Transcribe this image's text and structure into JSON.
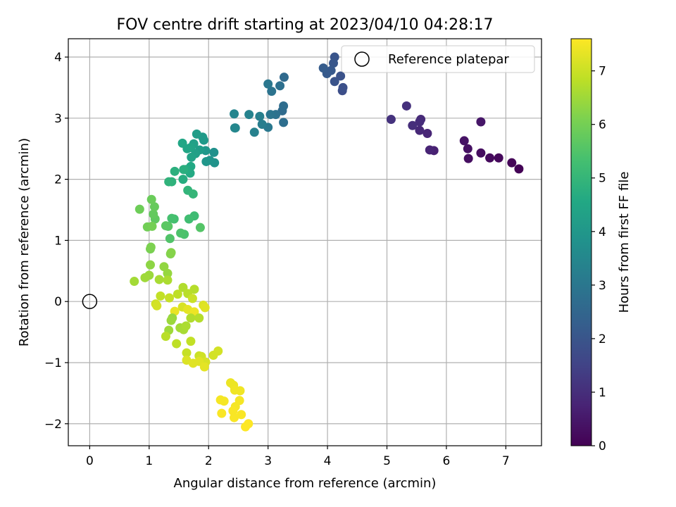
{
  "chart_data": {
    "type": "scatter",
    "title": "FOV centre drift starting at 2023/04/10 04:28:17",
    "xlabel": "Angular distance from reference (arcmin)",
    "ylabel": "Rotation from reference (arcmin)",
    "xlim": [
      -0.36,
      7.6
    ],
    "ylim": [
      -2.36,
      4.3
    ],
    "xticks": [
      0,
      1,
      2,
      3,
      4,
      5,
      6,
      7
    ],
    "yticks": [
      -2,
      -1,
      0,
      1,
      2,
      3,
      4
    ],
    "grid": true,
    "legend": {
      "placement": "top-right",
      "entries": [
        "Reference platepar"
      ]
    },
    "reference": {
      "x": 0,
      "y": 0,
      "label": "Reference platepar"
    },
    "colorbar": {
      "label": "Hours from first FF file",
      "min": 0,
      "max": 7.6,
      "ticks": [
        0,
        1,
        2,
        3,
        4,
        5,
        6,
        7
      ],
      "colormap": "viridis"
    },
    "series": [
      {
        "values": [
          [
            7.22,
            2.17,
            0.05
          ],
          [
            7.1,
            2.27,
            0.1
          ],
          [
            6.88,
            2.35,
            0.15
          ],
          [
            6.73,
            2.35,
            0.2
          ],
          [
            6.58,
            2.43,
            0.25
          ],
          [
            6.37,
            2.34,
            0.3
          ],
          [
            6.36,
            2.5,
            0.35
          ],
          [
            6.3,
            2.63,
            0.4
          ],
          [
            6.58,
            2.94,
            0.45
          ],
          [
            5.79,
            2.47,
            0.7
          ],
          [
            5.72,
            2.48,
            0.75
          ],
          [
            5.68,
            2.75,
            0.8
          ],
          [
            5.55,
            2.8,
            0.85
          ],
          [
            5.57,
            2.98,
            0.9
          ],
          [
            5.55,
            2.94,
            0.95
          ],
          [
            5.43,
            2.88,
            1.0
          ],
          [
            5.33,
            3.2,
            1.05
          ],
          [
            5.07,
            2.98,
            1.1
          ],
          [
            4.25,
            3.45,
            1.8
          ],
          [
            4.26,
            3.5,
            1.85
          ],
          [
            4.22,
            3.69,
            1.9
          ],
          [
            4.12,
            3.6,
            1.95
          ],
          [
            4.12,
            4.0,
            2.0
          ],
          [
            4.1,
            3.9,
            2.05
          ],
          [
            4.06,
            3.78,
            2.1
          ],
          [
            3.99,
            3.73,
            2.15
          ],
          [
            3.93,
            3.82,
            2.2
          ],
          [
            3.27,
            3.67,
            2.6
          ],
          [
            3.24,
            3.12,
            2.65
          ],
          [
            3.26,
            3.2,
            2.7
          ],
          [
            3.26,
            2.93,
            2.75
          ],
          [
            3.2,
            3.53,
            2.8
          ],
          [
            3.13,
            3.06,
            2.85
          ],
          [
            3.06,
            3.44,
            2.9
          ],
          [
            3.04,
            3.06,
            2.95
          ],
          [
            3.0,
            3.56,
            3.0
          ],
          [
            3.0,
            2.85,
            3.05
          ],
          [
            2.9,
            2.9,
            3.2
          ],
          [
            2.86,
            3.03,
            3.25
          ],
          [
            2.77,
            2.77,
            3.3
          ],
          [
            2.68,
            3.06,
            3.35
          ],
          [
            2.45,
            2.84,
            3.4
          ],
          [
            2.43,
            3.07,
            3.45
          ],
          [
            2.44,
            2.84,
            3.5
          ],
          [
            2.09,
            2.44,
            3.8
          ],
          [
            2.1,
            2.27,
            3.85
          ],
          [
            2.02,
            2.31,
            3.9
          ],
          [
            1.96,
            2.29,
            3.95
          ],
          [
            1.95,
            2.47,
            4.0
          ],
          [
            1.92,
            2.64,
            4.05
          ],
          [
            1.9,
            2.69,
            4.1
          ],
          [
            1.85,
            2.48,
            4.15
          ],
          [
            1.8,
            2.74,
            4.2
          ],
          [
            1.78,
            2.42,
            4.25
          ],
          [
            1.75,
            2.58,
            4.3
          ],
          [
            1.71,
            2.36,
            4.35
          ],
          [
            1.7,
            2.52,
            4.4
          ],
          [
            1.64,
            2.5,
            4.45
          ],
          [
            1.56,
            2.59,
            4.5
          ],
          [
            1.7,
            2.21,
            4.55
          ],
          [
            1.69,
            2.1,
            4.6
          ],
          [
            1.62,
            2.16,
            4.65
          ],
          [
            1.57,
            2.0,
            4.7
          ],
          [
            1.58,
            2.16,
            4.75
          ],
          [
            1.43,
            2.13,
            4.8
          ],
          [
            1.38,
            1.96,
            4.85
          ],
          [
            1.33,
            1.96,
            4.9
          ],
          [
            1.65,
            1.82,
            4.95
          ],
          [
            1.74,
            1.76,
            5.0
          ],
          [
            1.76,
            1.4,
            5.2
          ],
          [
            1.67,
            1.35,
            5.25
          ],
          [
            1.42,
            1.35,
            5.3
          ],
          [
            1.38,
            1.36,
            5.35
          ],
          [
            1.59,
            1.1,
            5.4
          ],
          [
            1.53,
            1.12,
            5.45
          ],
          [
            1.35,
            1.03,
            5.5
          ],
          [
            1.86,
            1.21,
            5.55
          ],
          [
            1.32,
            1.23,
            5.6
          ],
          [
            1.28,
            1.24,
            5.65
          ],
          [
            1.1,
            1.35,
            5.7
          ],
          [
            1.07,
            1.43,
            5.75
          ],
          [
            1.09,
            1.55,
            5.8
          ],
          [
            1.04,
            1.67,
            5.85
          ],
          [
            0.84,
            1.51,
            5.9
          ],
          [
            0.97,
            1.22,
            5.95
          ],
          [
            1.05,
            1.23,
            6.0
          ],
          [
            1.02,
            0.86,
            6.05
          ],
          [
            1.03,
            0.89,
            6.1
          ],
          [
            1.36,
            0.78,
            6.15
          ],
          [
            1.37,
            0.8,
            6.2
          ],
          [
            1.02,
            0.6,
            6.3
          ],
          [
            1.25,
            0.57,
            6.35
          ],
          [
            1.31,
            0.46,
            6.4
          ],
          [
            1.0,
            0.43,
            6.45
          ],
          [
            0.93,
            0.39,
            6.5
          ],
          [
            0.75,
            0.33,
            6.55
          ],
          [
            1.17,
            0.36,
            6.6
          ],
          [
            1.31,
            0.35,
            6.65
          ],
          [
            1.57,
            0.23,
            6.7
          ],
          [
            1.76,
            0.2,
            6.75
          ],
          [
            1.65,
            0.13,
            6.8
          ],
          [
            1.48,
            0.12,
            6.85
          ],
          [
            1.19,
            0.09,
            6.9
          ],
          [
            1.34,
            0.06,
            6.95
          ],
          [
            1.73,
            0.05,
            7.0
          ],
          [
            1.11,
            -0.04,
            7.05
          ],
          [
            1.13,
            -0.07,
            7.1
          ],
          [
            1.56,
            -0.09,
            7.15
          ],
          [
            1.91,
            -0.06,
            7.2
          ],
          [
            1.94,
            -0.1,
            7.25
          ],
          [
            1.65,
            -0.13,
            7.3
          ],
          [
            1.43,
            -0.16,
            7.35
          ],
          [
            1.76,
            -0.17,
            7.4
          ]
        ]
      },
      {
        "values": [
          [
            1.39,
            -0.27,
            6.4
          ],
          [
            1.37,
            -0.31,
            6.45
          ],
          [
            1.33,
            -0.47,
            6.5
          ],
          [
            1.52,
            -0.43,
            6.55
          ],
          [
            1.58,
            -0.46,
            6.6
          ],
          [
            1.62,
            -0.4,
            6.65
          ],
          [
            1.7,
            -0.27,
            6.7
          ],
          [
            1.84,
            -0.27,
            6.75
          ],
          [
            1.28,
            -0.57,
            6.8
          ],
          [
            1.46,
            -0.69,
            6.85
          ],
          [
            1.7,
            -0.65,
            6.9
          ],
          [
            1.63,
            -0.84,
            6.95
          ],
          [
            1.84,
            -0.89,
            7.0
          ],
          [
            1.88,
            -0.9,
            7.05
          ],
          [
            2.16,
            -0.81,
            7.1
          ],
          [
            2.08,
            -0.88,
            7.1
          ],
          [
            1.95,
            -0.99,
            7.15
          ],
          [
            1.63,
            -0.96,
            7.2
          ],
          [
            1.74,
            -1.01,
            7.25
          ],
          [
            1.84,
            -0.98,
            7.25
          ],
          [
            1.93,
            -1.07,
            7.3
          ],
          [
            2.37,
            -1.33,
            7.4
          ],
          [
            2.42,
            -1.37,
            7.4
          ],
          [
            2.44,
            -1.45,
            7.45
          ],
          [
            2.53,
            -1.46,
            7.45
          ],
          [
            2.2,
            -1.61,
            7.5
          ],
          [
            2.26,
            -1.63,
            7.5
          ],
          [
            2.52,
            -1.62,
            7.5
          ],
          [
            2.45,
            -1.72,
            7.5
          ],
          [
            2.41,
            -1.79,
            7.55
          ],
          [
            2.55,
            -1.85,
            7.55
          ],
          [
            2.22,
            -1.83,
            7.55
          ],
          [
            2.43,
            -1.9,
            7.55
          ],
          [
            2.62,
            -2.05,
            7.6
          ],
          [
            2.67,
            -2.0,
            7.6
          ]
        ]
      }
    ]
  }
}
